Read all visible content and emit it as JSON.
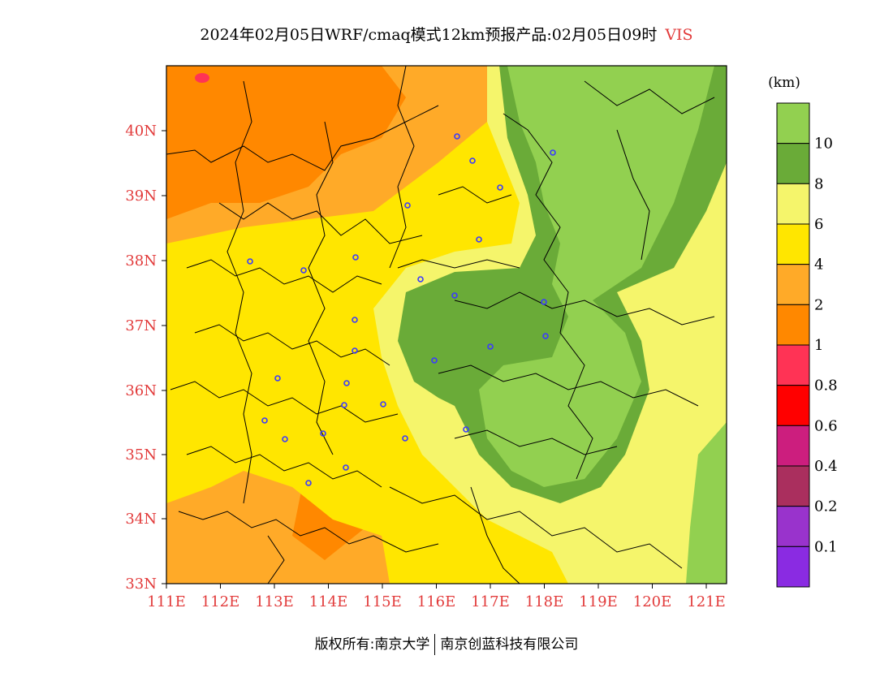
{
  "title": {
    "main": "2024年02月05日WRF/cmaq模式12km预报产品:02月05日09时",
    "variable": "VIS"
  },
  "map": {
    "lat_labels": [
      "40N",
      "39N",
      "38N",
      "37N",
      "36N",
      "35N",
      "34N",
      "33N"
    ],
    "lon_labels": [
      "111E",
      "112E",
      "113E",
      "114E",
      "115E",
      "116E",
      "117E",
      "118E",
      "119E",
      "120E",
      "121E"
    ],
    "label_color": "#e23b3b"
  },
  "legend": {
    "unit": "(km)",
    "levels": [
      "10",
      "8",
      "6",
      "4",
      "2",
      "1",
      "0.8",
      "0.6",
      "0.4",
      "0.2",
      "0.1"
    ],
    "colors": [
      "#92d050",
      "#6aab38",
      "#f5f56b",
      "#ffe600",
      "#ffaa28",
      "#ff8800",
      "#ff3355",
      "#ff0000",
      "#cc1e7e",
      "#aa2f5e",
      "#9933cc",
      "#8a2be2"
    ]
  },
  "footer": {
    "left": "版权所有:南京大学",
    "right": "南京创蓝科技有限公司"
  }
}
